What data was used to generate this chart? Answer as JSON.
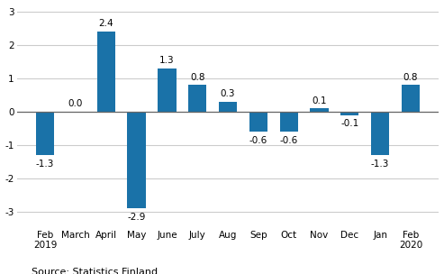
{
  "categories": [
    "Feb\n2019",
    "March",
    "April",
    "May",
    "June",
    "July",
    "Aug",
    "Sep",
    "Oct",
    "Nov",
    "Dec",
    "Jan",
    "Feb\n2020"
  ],
  "values": [
    -1.3,
    0.0,
    2.4,
    -2.9,
    1.3,
    0.8,
    0.3,
    -0.6,
    -0.6,
    0.1,
    -0.1,
    -1.3,
    0.8
  ],
  "bar_color": "#1a72a8",
  "ylim": [
    -3.5,
    3.2
  ],
  "yticks": [
    -3,
    -2,
    -1,
    0,
    1,
    2,
    3
  ],
  "source_text": "Source: Statistics Finland",
  "background_color": "#ffffff",
  "label_fontsize": 7.5,
  "tick_fontsize": 7.5,
  "source_fontsize": 8.0,
  "zero_line_color": "#666666",
  "grid_color": "#cccccc",
  "bar_width": 0.6
}
